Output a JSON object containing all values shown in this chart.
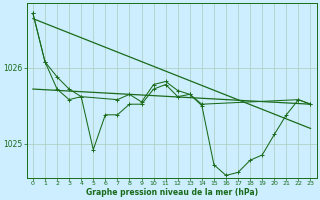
{
  "xlabel": "Graphe pression niveau de la mer (hPa)",
  "bg_color": "#cceeff",
  "line_color": "#1a6b1a",
  "grid_color": "#aaccbb",
  "x_ticks": [
    0,
    1,
    2,
    3,
    4,
    5,
    6,
    7,
    8,
    9,
    10,
    11,
    12,
    13,
    14,
    15,
    16,
    17,
    18,
    19,
    20,
    21,
    22,
    23
  ],
  "xlim": [
    -0.5,
    23.5
  ],
  "ylim": [
    1024.55,
    1026.85
  ],
  "yticks": [
    1025.0,
    1026.0
  ],
  "series1": [
    [
      0,
      1026.72
    ],
    [
      1,
      1026.08
    ],
    [
      2,
      1025.72
    ],
    [
      3,
      1025.58
    ],
    [
      4,
      1025.62
    ],
    [
      5,
      1024.92
    ],
    [
      6,
      1025.38
    ],
    [
      7,
      1025.38
    ],
    [
      8,
      1025.52
    ],
    [
      9,
      1025.52
    ],
    [
      10,
      1025.72
    ],
    [
      11,
      1025.78
    ],
    [
      12,
      1025.62
    ],
    [
      13,
      1025.65
    ],
    [
      14,
      1025.5
    ],
    [
      15,
      1024.72
    ],
    [
      16,
      1024.58
    ],
    [
      17,
      1024.62
    ],
    [
      18,
      1024.78
    ],
    [
      19,
      1024.85
    ],
    [
      20,
      1025.12
    ],
    [
      21,
      1025.38
    ],
    [
      22,
      1025.58
    ],
    [
      23,
      1025.52
    ]
  ],
  "series2": [
    [
      0,
      1026.72
    ],
    [
      1,
      1026.08
    ],
    [
      2,
      1025.88
    ],
    [
      3,
      1025.72
    ],
    [
      4,
      1025.62
    ],
    [
      7,
      1025.58
    ],
    [
      8,
      1025.65
    ],
    [
      9,
      1025.55
    ],
    [
      10,
      1025.78
    ],
    [
      11,
      1025.82
    ],
    [
      12,
      1025.7
    ],
    [
      13,
      1025.65
    ],
    [
      14,
      1025.52
    ],
    [
      22,
      1025.58
    ],
    [
      23,
      1025.52
    ]
  ],
  "trend1_x": [
    0,
    23
  ],
  "trend1_y": [
    1026.65,
    1025.2
  ],
  "trend2_x": [
    0,
    23
  ],
  "trend2_y": [
    1025.72,
    1025.52
  ]
}
